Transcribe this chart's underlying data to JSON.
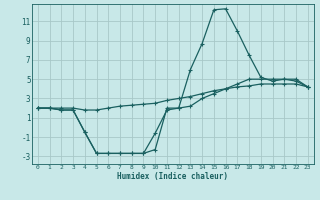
{
  "xlabel": "Humidex (Indice chaleur)",
  "background_color": "#c8e8e8",
  "grid_color": "#a8c8c8",
  "line_color": "#1a6060",
  "xlim": [
    -0.5,
    23.5
  ],
  "ylim": [
    -3.8,
    12.8
  ],
  "yticks": [
    -3,
    -1,
    1,
    3,
    5,
    7,
    9,
    11
  ],
  "xticks": [
    0,
    1,
    2,
    3,
    4,
    5,
    6,
    7,
    8,
    9,
    10,
    11,
    12,
    13,
    14,
    15,
    16,
    17,
    18,
    19,
    20,
    21,
    22,
    23
  ],
  "line1": [
    2.0,
    2.0,
    2.0,
    2.0,
    1.8,
    1.8,
    2.0,
    2.2,
    2.3,
    2.4,
    2.5,
    2.8,
    3.0,
    3.2,
    3.5,
    3.8,
    4.0,
    4.2,
    4.3,
    4.5,
    4.5,
    4.5,
    4.5,
    4.2
  ],
  "line2": [
    2.0,
    2.0,
    1.8,
    1.8,
    -0.5,
    -2.7,
    -2.7,
    -2.7,
    -2.7,
    -2.7,
    -2.3,
    2.0,
    2.0,
    6.0,
    8.7,
    12.2,
    12.3,
    10.0,
    7.5,
    5.2,
    4.8,
    5.0,
    5.0,
    4.2
  ],
  "line3": [
    2.0,
    2.0,
    1.8,
    1.8,
    -0.5,
    -2.7,
    -2.7,
    -2.7,
    -2.7,
    -2.7,
    -0.6,
    1.8,
    2.0,
    2.2,
    3.0,
    3.5,
    4.0,
    4.5,
    5.0,
    5.0,
    5.0,
    5.0,
    4.8,
    4.2
  ]
}
